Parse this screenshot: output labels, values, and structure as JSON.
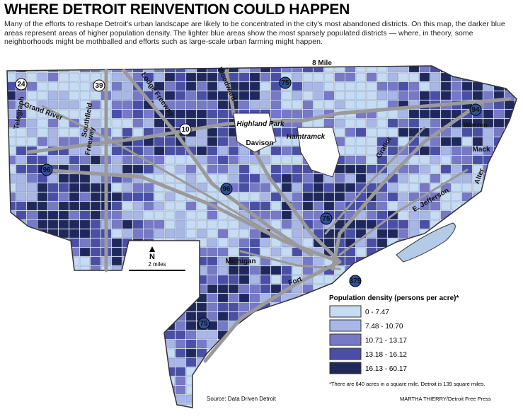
{
  "header": {
    "title": "WHERE DETROIT REINVENTION COULD HAPPEN",
    "description": "Many of the efforts to reshape Detroit's urban landscape are likely to be concentrated in the city's most abandoned districts. On this map, the darker blue areas represent areas of higher population density. The lighter blue areas show the most sparsely populated districts — where, in theory, some neighborhoods might be mothballed and efforts such as large-scale urban farming might happen."
  },
  "map": {
    "labels": [
      "8 Mile",
      "24",
      "39",
      "Telegraph",
      "Grand River",
      "Southfield",
      "Freeway",
      "Lodge Freeway",
      "Woodward",
      "75",
      "10",
      "Highland Park",
      "Davison",
      "Hamtramck",
      "94",
      "Warren",
      "Mack",
      "Gratiot",
      "Alter",
      "96",
      "96",
      "75",
      "E. Jefferson",
      "Michigan",
      "Fort",
      "375",
      "75"
    ]
  },
  "scale": {
    "north": "N",
    "distance": "2 miles"
  },
  "legend": {
    "title": "Population density (persons per acre)*",
    "classes": [
      {
        "label": "0 - 7.47",
        "color": "#c6dcf3"
      },
      {
        "label": "7.48 - 10.70",
        "color": "#a9b7e6"
      },
      {
        "label": "10.71 - 13.17",
        "color": "#7779c6"
      },
      {
        "label": "13.18 - 16.12",
        "color": "#4a4ea5"
      },
      {
        "label": "16.13 - 60.17",
        "color": "#20275a"
      }
    ],
    "footnote": "*There are 640 acres in a square mile. Detroit is 139 square miles."
  },
  "credits": {
    "source": "Source: Data Driven Detroit",
    "byline": "MARTHA THIERRY/Detroit Free Press"
  }
}
